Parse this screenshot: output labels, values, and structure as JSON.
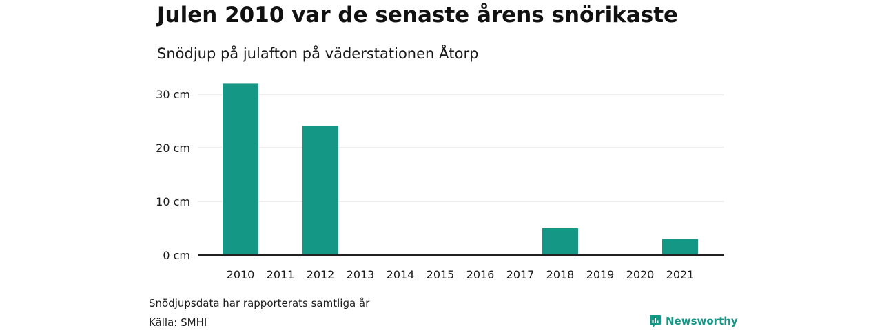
{
  "header": {
    "title": "Julen 2010 var de senaste årens snörikaste",
    "subtitle": "Snödjup på julafton på väderstationen Åtorp"
  },
  "chart_data": {
    "type": "bar",
    "categories": [
      "2010",
      "2011",
      "2012",
      "2013",
      "2014",
      "2015",
      "2016",
      "2017",
      "2018",
      "2019",
      "2020",
      "2021"
    ],
    "values": [
      32,
      0,
      24,
      0,
      0,
      0,
      0,
      0,
      5,
      0,
      0,
      3
    ],
    "ylim": [
      0,
      30
    ],
    "yticks": [
      0,
      10,
      20,
      30
    ],
    "ytick_labels": [
      "0 cm",
      "10 cm",
      "20 cm",
      "30 cm"
    ],
    "xlabel": "",
    "ylabel": "",
    "grid": true,
    "bar_color": "#159786"
  },
  "footer": {
    "note": "Snödjupsdata har rapporterats samtliga år",
    "source": "Källa: SMHI",
    "brand": "Newsworthy",
    "brand_icon": "newsworthy-logo-icon",
    "brand_color": "#159786"
  }
}
